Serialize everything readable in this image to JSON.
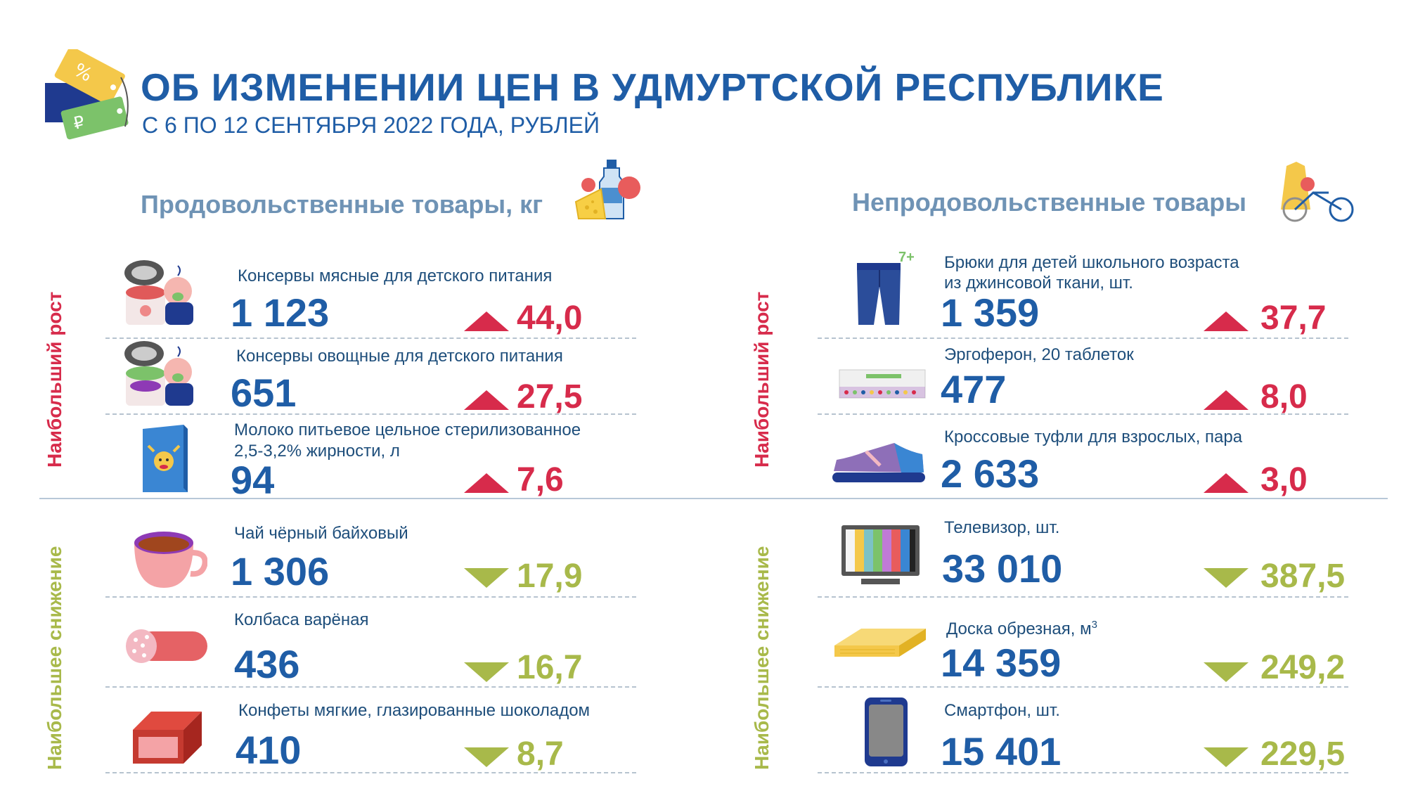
{
  "header": {
    "title": "ОБ ИЗМЕНЕНИИ ЦЕН В УДМУРТСКОЙ РЕСПУБЛИКЕ",
    "subtitle": "С 6 ПО 12 СЕНТЯБРЯ 2022 ГОДА, РУБЛЕЙ"
  },
  "food": {
    "title": "Продовольственные товары, кг",
    "group_up_label": "Наибольший рост",
    "group_down_label": "Наибольшее снижение",
    "up_items": [
      {
        "name": "Консервы мясные для детского питания",
        "price": "1 123",
        "change": "44,0",
        "direction": "up",
        "icon": "baby-food-meat-can-icon"
      },
      {
        "name": "Консервы овощные для детского питания",
        "price": "651",
        "change": "27,5",
        "direction": "up",
        "icon": "baby-food-vegetable-can-icon"
      },
      {
        "name": "Молоко питьевое цельное стерилизованное",
        "name2": "2,5-3,2% жирности, л",
        "price": "94",
        "change": "7,6",
        "direction": "up",
        "icon": "milk-carton-icon"
      }
    ],
    "down_items": [
      {
        "name": "Чай чёрный байховый",
        "price": "1 306",
        "change": "17,9",
        "direction": "down",
        "icon": "tea-cup-icon"
      },
      {
        "name": "Колбаса варёная",
        "price": "436",
        "change": "16,7",
        "direction": "down",
        "icon": "sausage-icon"
      },
      {
        "name": "Конфеты мягкие, глазированные шоколадом",
        "price": "410",
        "change": "8,7",
        "direction": "down",
        "icon": "candy-bar-icon"
      }
    ]
  },
  "nonfood": {
    "title": "Непродовольственные товары",
    "group_up_label": "Наибольший рост",
    "group_down_label": "Наибольшее снижение",
    "up_items": [
      {
        "name": "Брюки для детей школьного возраста",
        "name2": "из джинсовой ткани, шт.",
        "price": "1 359",
        "change": "37,7",
        "direction": "up",
        "icon": "jeans-icon",
        "badge": "7+"
      },
      {
        "name": "Эргоферон, 20 таблеток",
        "price": "477",
        "change": "8,0",
        "direction": "up",
        "icon": "pill-box-icon"
      },
      {
        "name": "Кроссовые туфли для взрослых, пара",
        "price": "2 633",
        "change": "3,0",
        "direction": "up",
        "icon": "sneaker-icon"
      }
    ],
    "down_items": [
      {
        "name": "Телевизор, шт.",
        "price": "33 010",
        "change": "387,5",
        "direction": "down",
        "icon": "tv-icon"
      },
      {
        "name": "Доска обрезная, м",
        "name_sup": "3",
        "price": "14 359",
        "change": "249,2",
        "direction": "down",
        "icon": "lumber-board-icon"
      },
      {
        "name": "Смартфон, шт.",
        "price": "15 401",
        "change": "229,5",
        "direction": "down",
        "icon": "smartphone-icon"
      }
    ]
  },
  "colors": {
    "primary": "#1f5da6",
    "increase": "#d72b4b",
    "decrease": "#a8b94a",
    "section_title": "#6f93b5"
  }
}
